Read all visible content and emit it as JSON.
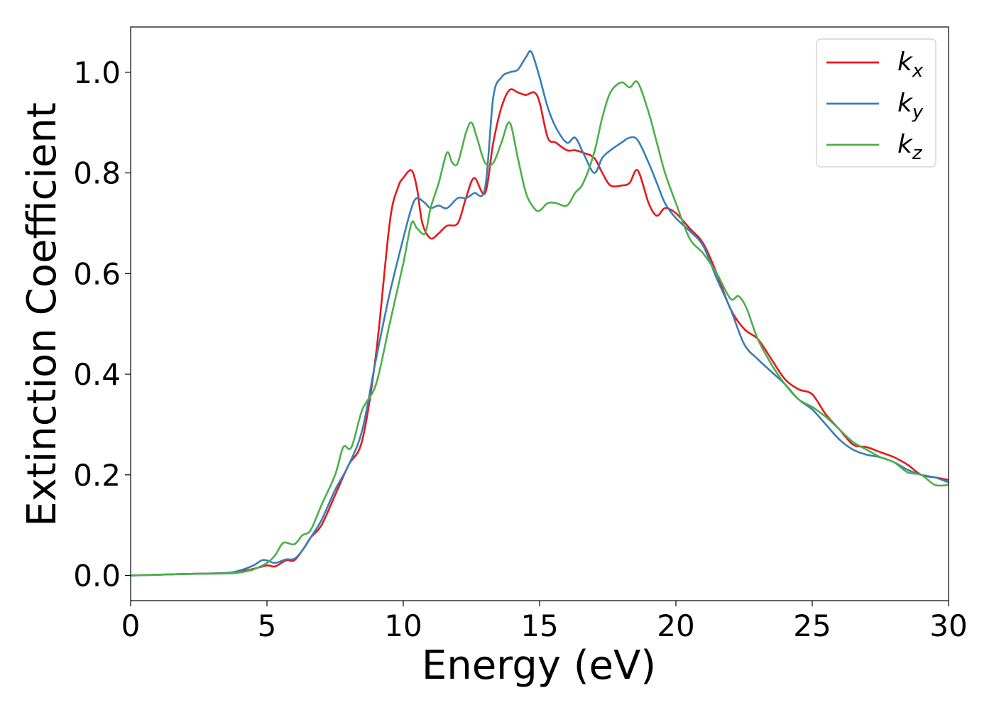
{
  "chart_data": {
    "type": "line",
    "title": "",
    "xlabel": "Energy (eV)",
    "ylabel": "Extinction Coefficient",
    "xlim": [
      0,
      30
    ],
    "ylim": [
      -0.05,
      1.09
    ],
    "xticks": [
      0,
      5,
      10,
      15,
      20,
      25,
      30
    ],
    "xtick_labels": [
      "0",
      "5",
      "10",
      "15",
      "20",
      "25",
      "30"
    ],
    "yticks": [
      0.0,
      0.2,
      0.4,
      0.6,
      0.8,
      1.0
    ],
    "ytick_labels": [
      "0.0",
      "0.2",
      "0.4",
      "0.6",
      "0.8",
      "1.0"
    ],
    "grid": false,
    "legend_position": "top-right",
    "series": [
      {
        "name": "k",
        "subscript": "x",
        "color": "#e41a1c",
        "x": [
          0,
          2,
          3.5,
          4,
          4.5,
          5,
          5.3,
          5.7,
          6,
          6.3,
          6.6,
          7,
          7.5,
          8,
          8.5,
          9,
          9.5,
          9.8,
          10,
          10.3,
          10.5,
          10.7,
          11,
          11.3,
          11.6,
          12,
          12.3,
          12.6,
          13,
          13.3,
          13.6,
          13.9,
          14.2,
          14.5,
          14.8,
          15,
          15.3,
          15.6,
          16,
          16.3,
          16.6,
          17,
          17.3,
          17.6,
          18,
          18.3,
          18.6,
          19,
          19.3,
          19.6,
          20,
          20.5,
          21,
          21.5,
          22,
          22.5,
          23,
          23.5,
          24,
          24.5,
          25,
          25.5,
          26,
          26.5,
          27,
          27.5,
          28,
          28.5,
          29,
          29.5,
          30
        ],
        "y": [
          0.0,
          0.003,
          0.005,
          0.008,
          0.013,
          0.02,
          0.018,
          0.03,
          0.03,
          0.05,
          0.075,
          0.1,
          0.16,
          0.22,
          0.27,
          0.44,
          0.7,
          0.77,
          0.79,
          0.805,
          0.77,
          0.7,
          0.67,
          0.68,
          0.695,
          0.7,
          0.75,
          0.79,
          0.76,
          0.86,
          0.93,
          0.965,
          0.96,
          0.955,
          0.96,
          0.94,
          0.87,
          0.86,
          0.845,
          0.845,
          0.84,
          0.83,
          0.8,
          0.775,
          0.775,
          0.78,
          0.805,
          0.74,
          0.715,
          0.73,
          0.72,
          0.69,
          0.66,
          0.6,
          0.53,
          0.49,
          0.47,
          0.43,
          0.39,
          0.37,
          0.36,
          0.32,
          0.29,
          0.26,
          0.255,
          0.245,
          0.235,
          0.22,
          0.2,
          0.195,
          0.19
        ]
      },
      {
        "name": "k",
        "subscript": "y",
        "color": "#377eb8",
        "x": [
          0,
          2,
          3.5,
          4,
          4.5,
          4.8,
          5,
          5.3,
          5.7,
          6,
          6.3,
          6.6,
          7,
          7.5,
          8,
          8.5,
          9,
          9.5,
          10,
          10.3,
          10.5,
          10.8,
          11,
          11.3,
          11.6,
          12,
          12.3,
          12.6,
          13,
          13.3,
          13.6,
          13.9,
          14.2,
          14.5,
          14.7,
          15,
          15.3,
          15.6,
          16,
          16.3,
          16.6,
          17,
          17.3,
          17.6,
          18,
          18.3,
          18.6,
          19,
          19.3,
          19.6,
          20,
          20.5,
          21,
          21.5,
          22,
          22.5,
          23,
          23.5,
          24,
          24.5,
          25,
          25.5,
          26,
          26.5,
          27,
          27.5,
          28,
          28.5,
          29,
          29.5,
          30
        ],
        "y": [
          0.0,
          0.003,
          0.005,
          0.01,
          0.02,
          0.03,
          0.03,
          0.025,
          0.032,
          0.033,
          0.05,
          0.075,
          0.11,
          0.17,
          0.22,
          0.29,
          0.43,
          0.56,
          0.67,
          0.73,
          0.75,
          0.74,
          0.73,
          0.735,
          0.73,
          0.75,
          0.75,
          0.76,
          0.77,
          0.95,
          0.99,
          1.0,
          1.005,
          1.03,
          1.04,
          0.99,
          0.93,
          0.89,
          0.86,
          0.87,
          0.84,
          0.8,
          0.83,
          0.845,
          0.86,
          0.87,
          0.865,
          0.82,
          0.78,
          0.74,
          0.71,
          0.685,
          0.655,
          0.59,
          0.53,
          0.46,
          0.43,
          0.405,
          0.38,
          0.35,
          0.33,
          0.3,
          0.27,
          0.25,
          0.24,
          0.235,
          0.225,
          0.21,
          0.2,
          0.195,
          0.185
        ]
      },
      {
        "name": "k",
        "subscript": "z",
        "color": "#4daf4a",
        "x": [
          0,
          2,
          3.5,
          4,
          4.5,
          5,
          5.3,
          5.6,
          6,
          6.3,
          6.6,
          7,
          7.5,
          7.8,
          8.1,
          8.5,
          9,
          9.5,
          10,
          10.3,
          10.5,
          10.8,
          11,
          11.3,
          11.6,
          11.8,
          12,
          12.3,
          12.5,
          12.7,
          13,
          13.3,
          13.6,
          13.9,
          14.2,
          14.5,
          14.8,
          15,
          15.3,
          15.6,
          16,
          16.3,
          16.6,
          17,
          17.3,
          17.6,
          18,
          18.3,
          18.6,
          19,
          19.3,
          19.6,
          20,
          20.5,
          21,
          21.5,
          22,
          22.3,
          22.6,
          23,
          23.5,
          24,
          24.5,
          25,
          25.5,
          26,
          26.5,
          27,
          27.5,
          28,
          28.5,
          29,
          29.5,
          30
        ],
        "y": [
          0.0,
          0.003,
          0.004,
          0.006,
          0.012,
          0.025,
          0.04,
          0.065,
          0.062,
          0.08,
          0.09,
          0.14,
          0.2,
          0.255,
          0.255,
          0.33,
          0.38,
          0.5,
          0.62,
          0.7,
          0.69,
          0.68,
          0.73,
          0.78,
          0.84,
          0.82,
          0.82,
          0.88,
          0.9,
          0.87,
          0.82,
          0.82,
          0.86,
          0.9,
          0.83,
          0.76,
          0.73,
          0.725,
          0.74,
          0.74,
          0.735,
          0.76,
          0.78,
          0.84,
          0.91,
          0.96,
          0.98,
          0.97,
          0.98,
          0.92,
          0.86,
          0.8,
          0.74,
          0.67,
          0.64,
          0.6,
          0.55,
          0.555,
          0.53,
          0.47,
          0.42,
          0.38,
          0.35,
          0.335,
          0.315,
          0.29,
          0.265,
          0.25,
          0.235,
          0.225,
          0.205,
          0.2,
          0.18,
          0.18
        ]
      }
    ]
  }
}
